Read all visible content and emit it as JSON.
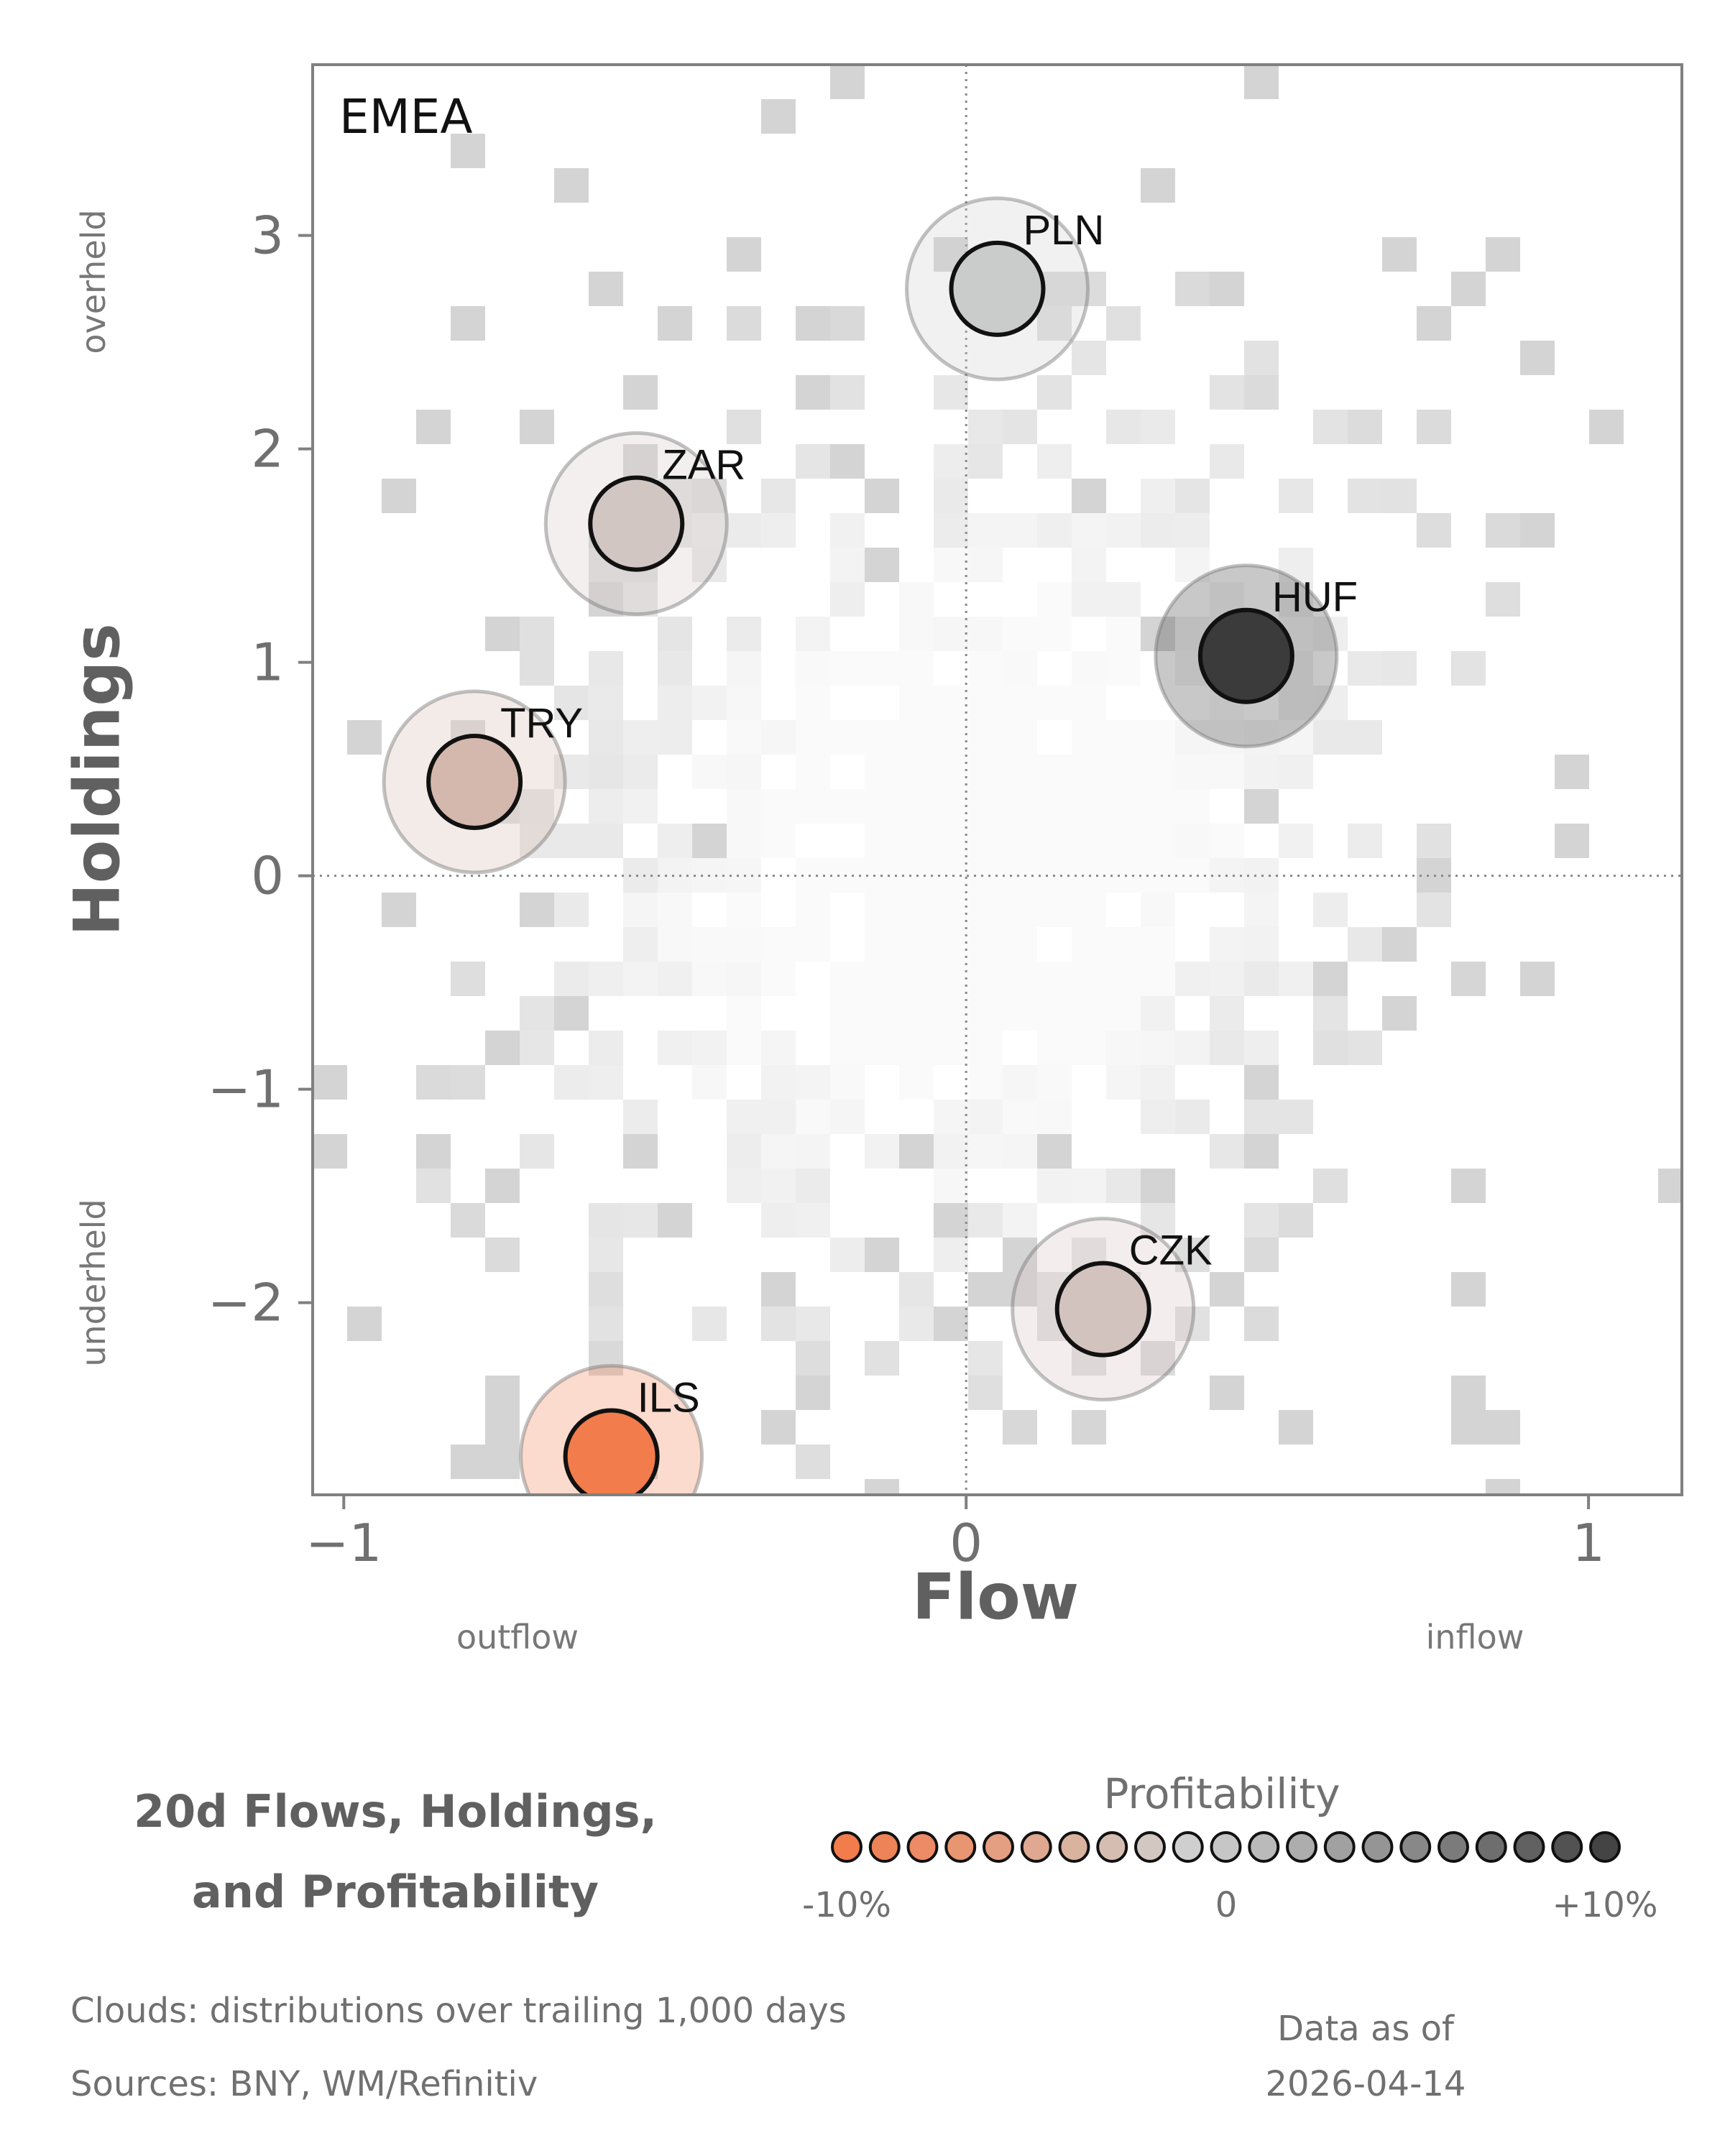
{
  "chart_data": {
    "type": "scatter",
    "panel_label": "EMEA",
    "xlabel": "Flow",
    "ylabel": "Holdings",
    "x_side_labels": {
      "left": "outflow",
      "right": "inflow"
    },
    "y_side_labels": {
      "top": "overheld",
      "bottom": "underheld"
    },
    "xlim": [
      -1.05,
      1.15
    ],
    "ylim": [
      -2.9,
      3.8
    ],
    "x_ticks": [
      -1,
      0,
      1
    ],
    "y_ticks": [
      3,
      2,
      1,
      0,
      -1,
      -2
    ],
    "tick_labels_x": [
      "−1",
      "0",
      "1"
    ],
    "tick_labels_y": [
      "3",
      "2",
      "1",
      "0",
      "−1",
      "−2"
    ],
    "reference_lines": {
      "x": 0,
      "y": 0,
      "style": "dotted"
    },
    "background": "2D histogram clouds (grey)",
    "points": [
      {
        "label": "PLN",
        "flow": 0.05,
        "holdings": 2.75,
        "profitability": 0.5,
        "color": "#c9ccca"
      },
      {
        "label": "ZAR",
        "flow": -0.53,
        "holdings": 1.65,
        "profitability": -2.0,
        "color": "#d2c6c3"
      },
      {
        "label": "HUF",
        "flow": 0.45,
        "holdings": 1.03,
        "profitability": 10.0,
        "color": "#3b3b3b"
      },
      {
        "label": "TRY",
        "flow": -0.79,
        "holdings": 0.44,
        "profitability": -3.5,
        "color": "#d4b8ad"
      },
      {
        "label": "CZK",
        "flow": 0.22,
        "holdings": -2.03,
        "profitability": -2.5,
        "color": "#d3c3be"
      },
      {
        "label": "ILS",
        "flow": -0.57,
        "holdings": -2.72,
        "profitability": -9.5,
        "color": "#f27c4c"
      }
    ]
  },
  "title_lines": [
    "20d Flows, Holdings,",
    "and Profitability"
  ],
  "legend": {
    "title": "Profitability",
    "tick_labels": [
      "-10%",
      "0",
      "+10%"
    ],
    "colors": [
      "#f27c4c",
      "#ef8358",
      "#ec8b65",
      "#e89572",
      "#e49e81",
      "#dfa890",
      "#dab39f",
      "#d6bdb1",
      "#d3c7c1",
      "#cfcfcf",
      "#c6c6c6",
      "#bababa",
      "#adadad",
      "#a1a1a1",
      "#959595",
      "#888888",
      "#7b7b7b",
      "#6e6e6e",
      "#616161",
      "#525252",
      "#444444"
    ]
  },
  "footer": {
    "clouds": "Clouds:  distributions over trailing 1,000 days",
    "sources": "Sources:  BNY, WM/Refinitiv",
    "asof_line1": "Data as of",
    "asof_line2": "2026-04-14"
  }
}
